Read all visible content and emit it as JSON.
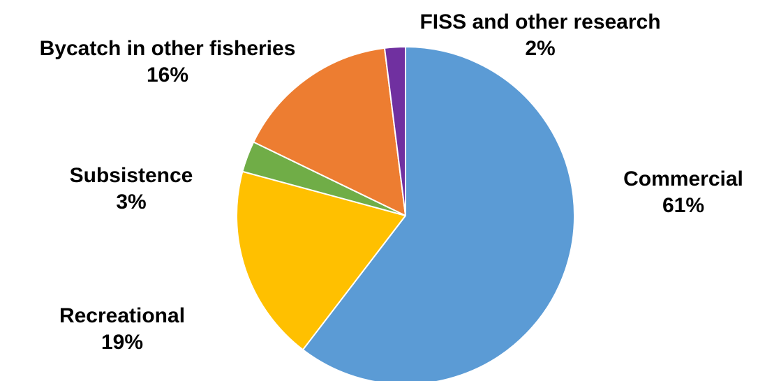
{
  "chart_data": {
    "type": "pie",
    "title": "",
    "start_angle_deg": 0,
    "direction": "clockwise",
    "slices": [
      {
        "name": "Commercial",
        "value": 61,
        "label": "61%",
        "color": "#5B9BD5"
      },
      {
        "name": "Recreational",
        "value": 19,
        "label": "19%",
        "color": "#FFC000"
      },
      {
        "name": "Subsistence",
        "value": 3,
        "label": "3%",
        "color": "#70AD47"
      },
      {
        "name": "Bycatch in other fisheries",
        "value": 16,
        "label": "16%",
        "color": "#ED7D31"
      },
      {
        "name": "FISS and other research",
        "value": 2,
        "label": "2%",
        "color": "#7030A0"
      }
    ],
    "slice_border_color": "#ffffff",
    "legend": "none",
    "data_labels": "outside"
  }
}
